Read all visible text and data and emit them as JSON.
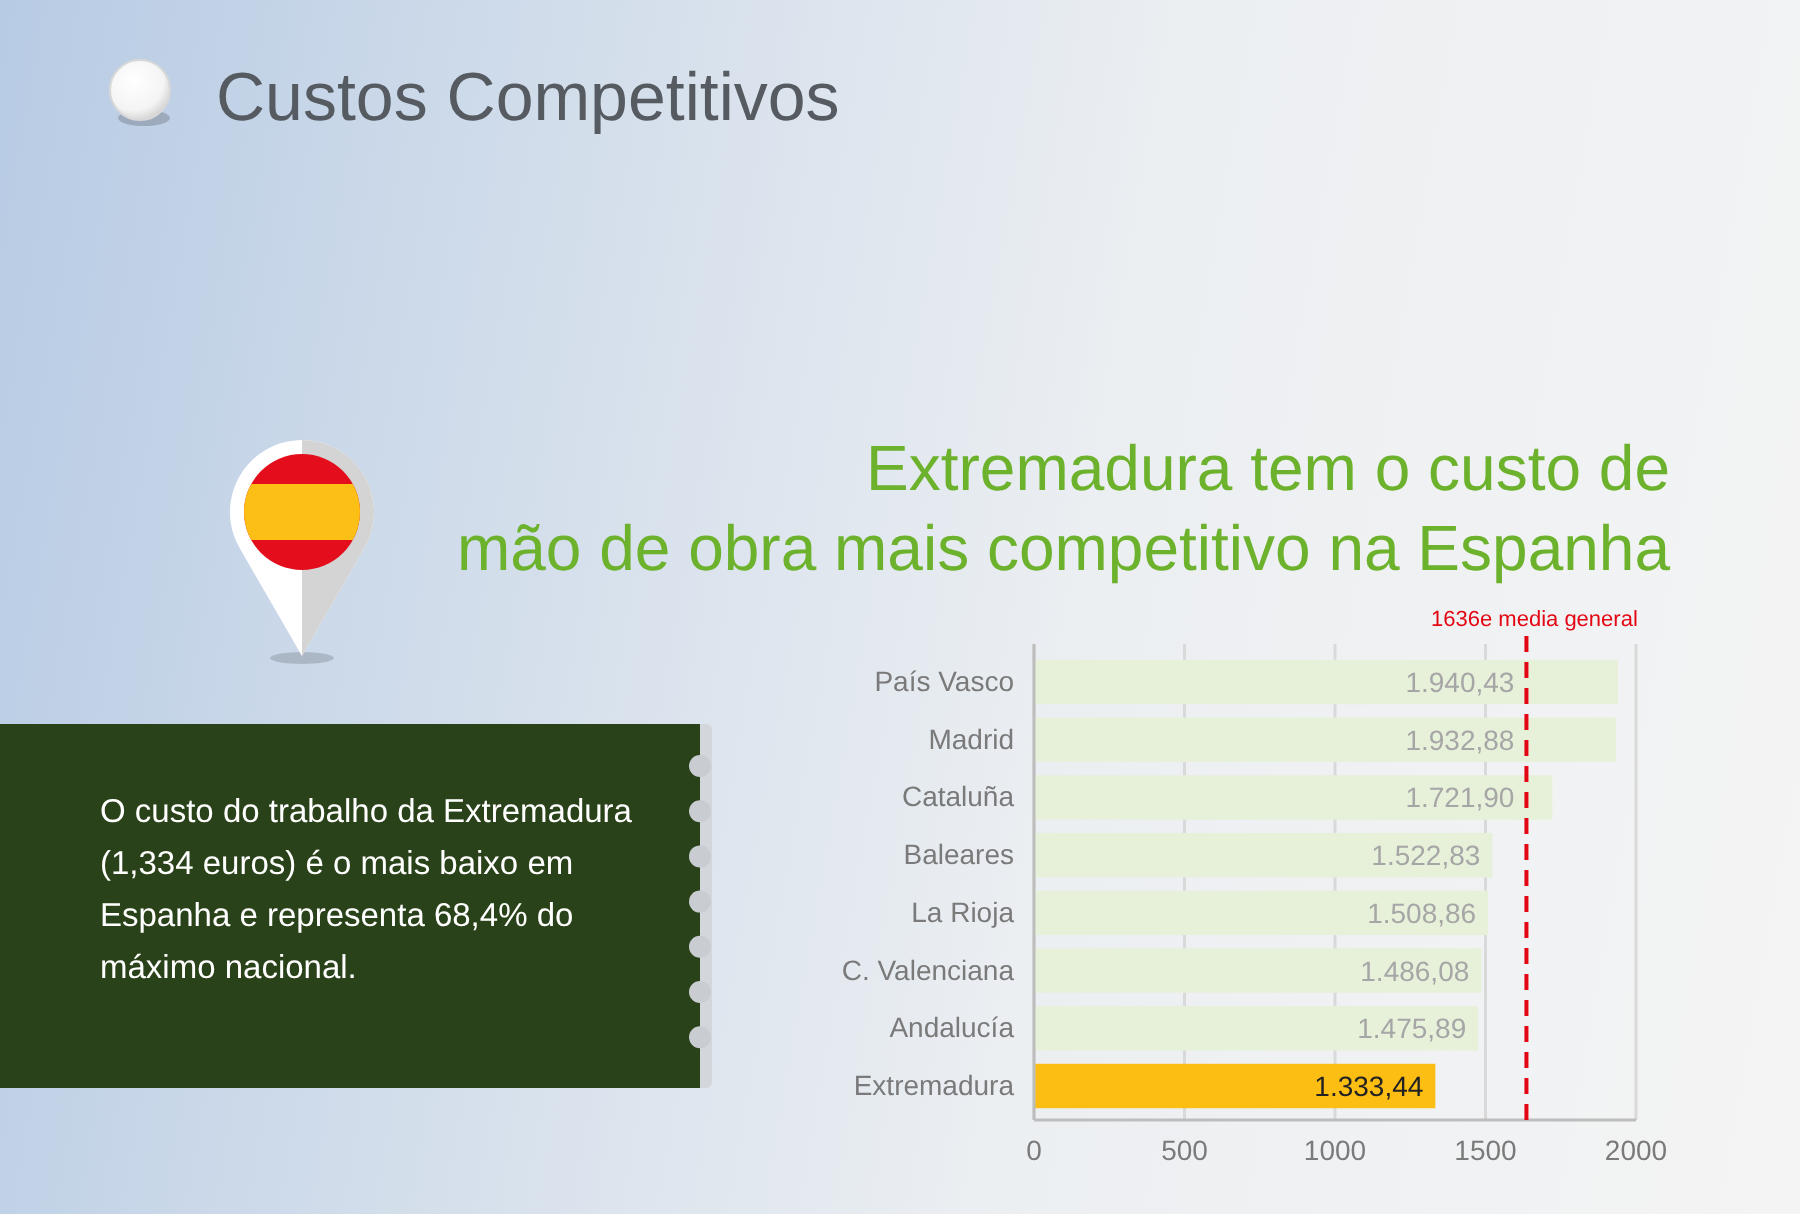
{
  "chart_data": {
    "type": "bar",
    "orientation": "horizontal",
    "title": "Custos Competitivos",
    "subtitle": "Extremadura tem o custo de mão de obra mais competitivo na Espanha",
    "categories": [
      "País Vasco",
      "Madrid",
      "Cataluña",
      "Baleares",
      "La Rioja",
      "C. Valenciana",
      "Andalucía",
      "Extremadura"
    ],
    "values": [
      1940.43,
      1932.88,
      1721.9,
      1522.83,
      1508.86,
      1486.08,
      1475.89,
      1333.44
    ],
    "value_labels": [
      "1.940,43",
      "1.932,88",
      "1.721,90",
      "1.522,83",
      "1.508,86",
      "1.486,08",
      "1.475,89",
      "1.333,44"
    ],
    "colors": [
      "#e7f1da",
      "#e7f1da",
      "#e7f1da",
      "#e7f1da",
      "#e7f1da",
      "#e7f1da",
      "#e7f1da",
      "#fdbe14"
    ],
    "xlim": [
      0,
      2000
    ],
    "xticks": [
      0,
      500,
      1000,
      1500,
      2000
    ],
    "grid": "x",
    "ref_lines": [
      {
        "axis": "x",
        "value": 1636,
        "label": "1636e media general",
        "color": "#e30613",
        "line_style": "dashed"
      }
    ],
    "annotations": [
      "O custo do trabalho da Extremadura (1,334 euros) é o mais baixo em Espanha e representa 68,4% do máximo nacional."
    ]
  }
}
